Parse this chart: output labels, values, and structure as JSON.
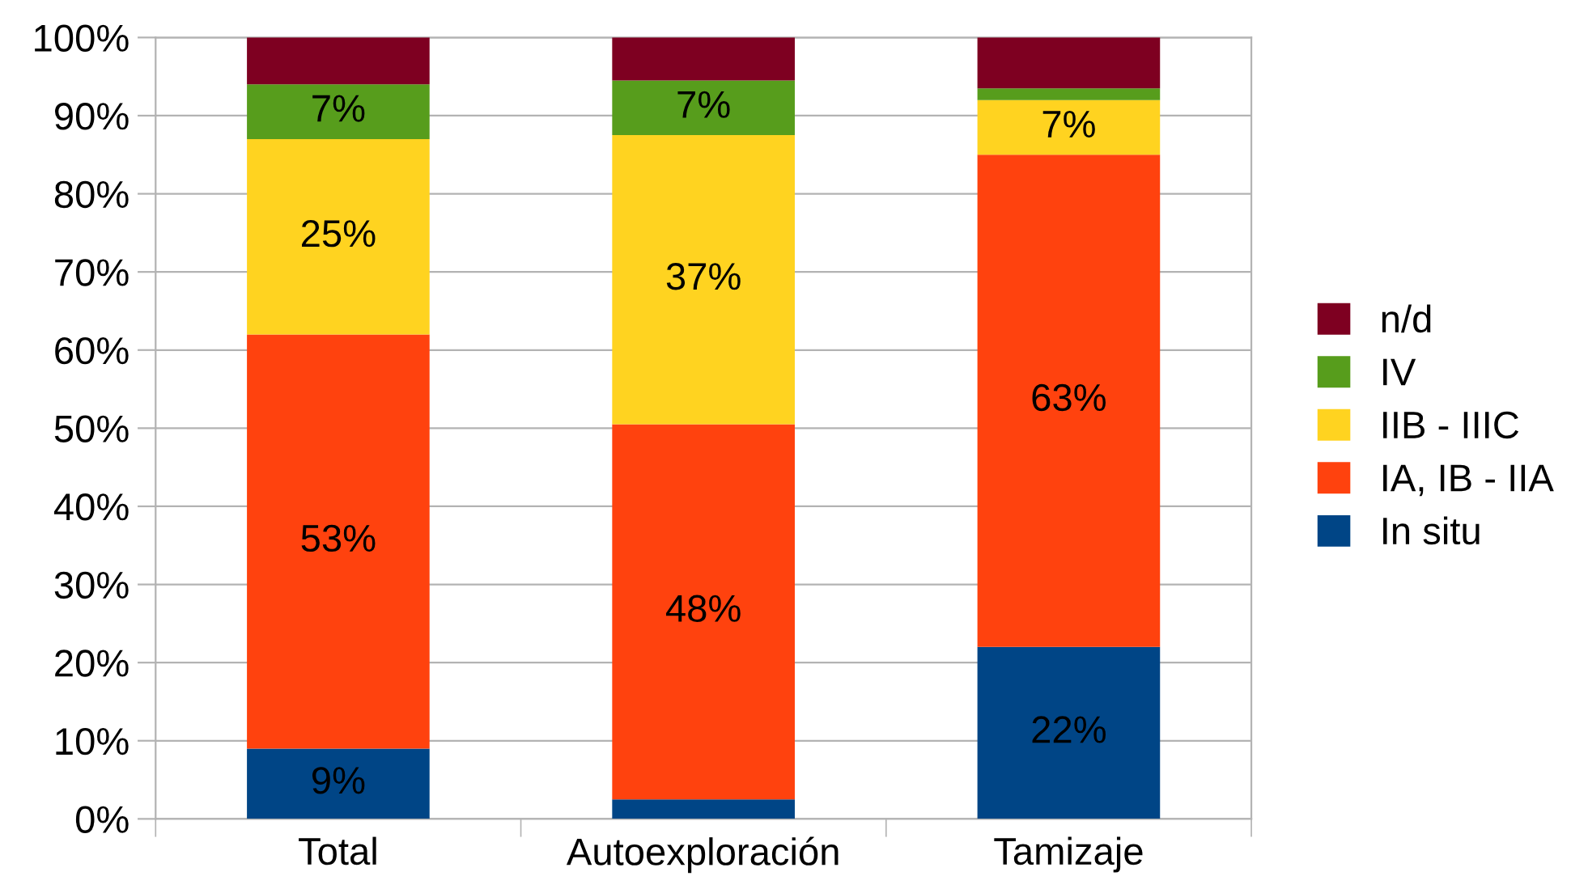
{
  "chart_data": {
    "type": "bar",
    "stacked": true,
    "categories": [
      "Total",
      "Autoexploración",
      "Tamizaje"
    ],
    "series": [
      {
        "name": "In situ",
        "color": "#004586",
        "values": [
          9,
          2.5,
          22
        ],
        "value_labels": [
          "9%",
          null,
          "22%"
        ]
      },
      {
        "name": "IA, IB - IIA",
        "color": "#ff420e",
        "values": [
          53,
          48,
          63
        ],
        "value_labels": [
          "53%",
          "48%",
          "63%"
        ]
      },
      {
        "name": "IIB - IIIC",
        "color": "#ffd320",
        "values": [
          25,
          37,
          7
        ],
        "value_labels": [
          "25%",
          "37%",
          "7%"
        ]
      },
      {
        "name": "IV",
        "color": "#579d1c",
        "values": [
          7,
          7,
          1.5
        ],
        "value_labels": [
          "7%",
          "7%",
          null
        ]
      },
      {
        "name": "n/d",
        "color": "#7e0021",
        "values": [
          6,
          5.5,
          6.5
        ],
        "value_labels": [
          null,
          null,
          null
        ]
      }
    ],
    "ylim": [
      0,
      100
    ],
    "yticks": [
      {
        "value": 0,
        "label": "0%"
      },
      {
        "value": 10,
        "label": "10%"
      },
      {
        "value": 20,
        "label": "20%"
      },
      {
        "value": 30,
        "label": "30%"
      },
      {
        "value": 40,
        "label": "40%"
      },
      {
        "value": 50,
        "label": "50%"
      },
      {
        "value": 60,
        "label": "60%"
      },
      {
        "value": 70,
        "label": "70%"
      },
      {
        "value": 80,
        "label": "80%"
      },
      {
        "value": 90,
        "label": "90%"
      },
      {
        "value": 100,
        "label": "100%"
      }
    ],
    "grid": "y",
    "legend": "right"
  }
}
